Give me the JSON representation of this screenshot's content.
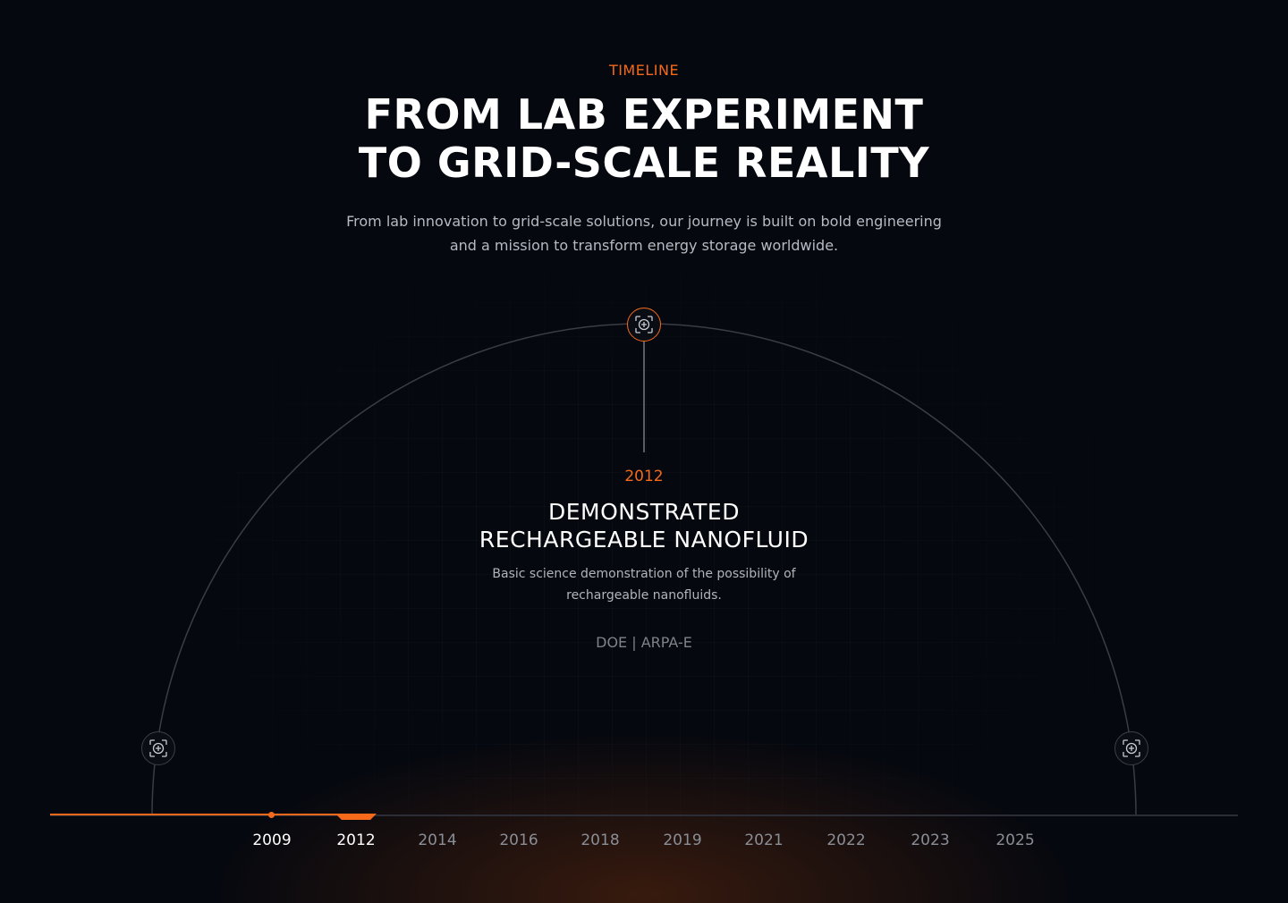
{
  "header": {
    "eyebrow": "TIMELINE",
    "title_line1": "FROM LAB EXPERIMENT",
    "title_line2": "TO GRID-SCALE REALITY",
    "subtitle_line1": "From lab innovation to grid-scale solutions, our journey is built on bold engineering",
    "subtitle_line2": "and a mission to transform energy storage worldwide."
  },
  "event": {
    "year": "2012",
    "title_line1": "DEMONSTRATED",
    "title_line2": "RECHARGEABLE NANOFLUID",
    "desc_line1": "Basic science demonstration of the possibility of",
    "desc_line2": "rechargeable nanofluids.",
    "tags": "DOE | ARPA-E"
  },
  "timeline": {
    "active_year": "2012",
    "years": [
      "2009",
      "2012",
      "2014",
      "2016",
      "2018",
      "2019",
      "2021",
      "2022",
      "2023",
      "2025"
    ]
  },
  "colors": {
    "accent": "#f46a1a",
    "background": "#05080f"
  },
  "icons": {
    "node": "crosshair-plus-icon"
  }
}
